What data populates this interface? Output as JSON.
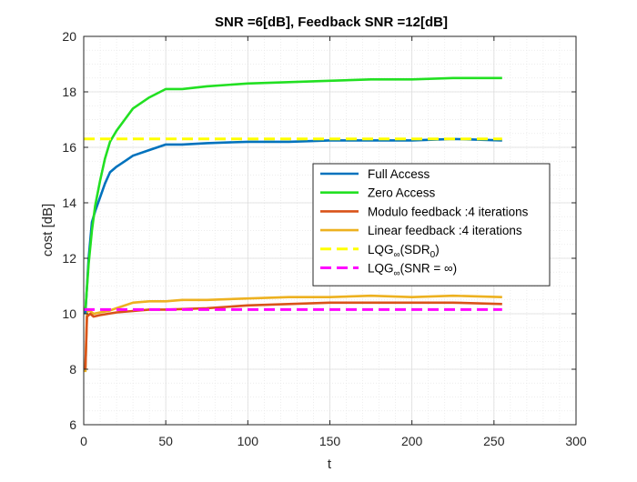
{
  "chart_data": {
    "type": "line",
    "title": "SNR =6[dB], Feedback SNR =12[dB]",
    "xlabel": "t",
    "ylabel": "cost [dB]",
    "xlim": [
      0,
      300
    ],
    "ylim": [
      6,
      20
    ],
    "xticks": [
      0,
      50,
      100,
      150,
      200,
      250,
      300
    ],
    "yticks": [
      6,
      8,
      10,
      12,
      14,
      16,
      18,
      20
    ],
    "xtick_labels": [
      "0",
      "50",
      "100",
      "150",
      "200",
      "250",
      "300"
    ],
    "ytick_labels": [
      "6",
      "8",
      "10",
      "12",
      "14",
      "16",
      "18",
      "20"
    ],
    "grid": true,
    "minor_grid": true,
    "legend_position": "center-right",
    "series": [
      {
        "name": "Full Access",
        "color": "#0072BD",
        "style": "solid",
        "x": [
          1,
          3,
          5,
          7,
          10,
          13,
          16,
          20,
          25,
          30,
          40,
          50,
          60,
          75,
          100,
          125,
          150,
          175,
          200,
          225,
          255
        ],
        "y": [
          10.0,
          12.0,
          13.3,
          13.7,
          14.2,
          14.7,
          15.1,
          15.3,
          15.5,
          15.7,
          15.9,
          16.1,
          16.1,
          16.15,
          16.2,
          16.2,
          16.25,
          16.25,
          16.25,
          16.3,
          16.25
        ]
      },
      {
        "name": "Zero Access",
        "color": "#22E022",
        "style": "solid",
        "x": [
          1,
          3,
          5,
          7,
          10,
          13,
          16,
          20,
          25,
          30,
          40,
          50,
          60,
          75,
          100,
          125,
          150,
          175,
          200,
          225,
          255
        ],
        "y": [
          10.1,
          11.8,
          13.0,
          13.9,
          14.8,
          15.6,
          16.2,
          16.6,
          17.0,
          17.4,
          17.8,
          18.1,
          18.1,
          18.2,
          18.3,
          18.35,
          18.4,
          18.45,
          18.45,
          18.5,
          18.5
        ]
      },
      {
        "name": "Modulo feedback :4 iterations",
        "color": "#D95319",
        "style": "solid",
        "x": [
          1,
          2,
          4,
          6,
          10,
          15,
          20,
          30,
          40,
          50,
          75,
          100,
          125,
          150,
          175,
          200,
          225,
          255
        ],
        "y": [
          8.0,
          9.9,
          10.0,
          9.9,
          9.95,
          10.0,
          10.05,
          10.1,
          10.15,
          10.15,
          10.2,
          10.3,
          10.35,
          10.4,
          10.4,
          10.4,
          10.4,
          10.35
        ]
      },
      {
        "name": "Linear feedback :4 iterations",
        "color": "#EDB120",
        "style": "solid",
        "x": [
          1,
          2,
          4,
          6,
          10,
          15,
          20,
          30,
          40,
          50,
          60,
          75,
          100,
          125,
          150,
          175,
          200,
          225,
          255
        ],
        "y": [
          7.9,
          10.1,
          10.1,
          10.0,
          10.05,
          10.1,
          10.2,
          10.4,
          10.45,
          10.45,
          10.5,
          10.5,
          10.55,
          10.6,
          10.6,
          10.65,
          10.6,
          10.65,
          10.6
        ]
      },
      {
        "name_prefix": "LQG",
        "name_sub": "∞",
        "name_suffix": "(SDR",
        "name_sub2": "0",
        "name_end": ")",
        "color": "#FFFF00",
        "style": "dashed",
        "x": [
          0,
          255
        ],
        "y": [
          16.3,
          16.3
        ]
      },
      {
        "name_prefix": "LQG",
        "name_sub": "∞",
        "name_suffix": "(SNR = ∞)",
        "color": "#FF00FF",
        "style": "dashed",
        "x": [
          0,
          255
        ],
        "y": [
          10.15,
          10.15
        ]
      }
    ]
  }
}
